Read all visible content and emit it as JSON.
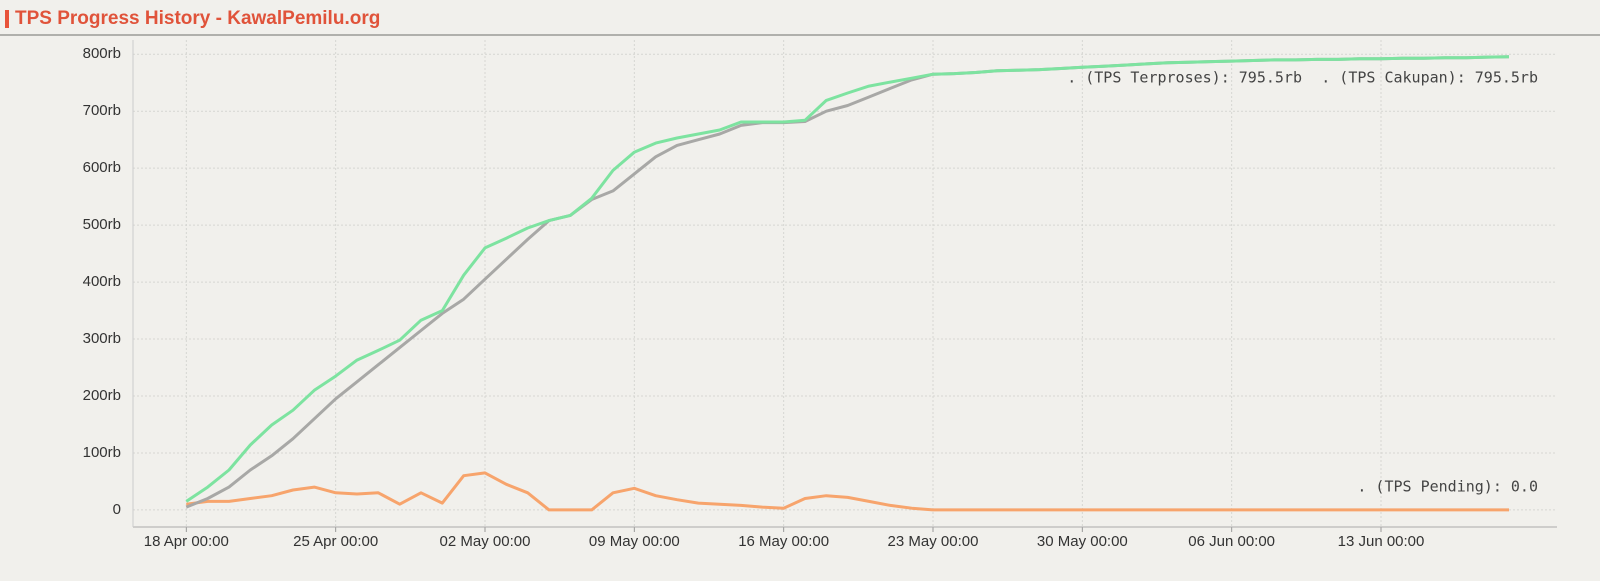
{
  "chart_data": {
    "type": "line",
    "title": "TPS Progress History - KawalPemilu.org",
    "x": [
      "18 Apr 00:00",
      "19 Apr 00:00",
      "20 Apr 00:00",
      "21 Apr 00:00",
      "22 Apr 00:00",
      "23 Apr 00:00",
      "24 Apr 00:00",
      "25 Apr 00:00",
      "26 Apr 00:00",
      "27 Apr 00:00",
      "28 Apr 00:00",
      "29 Apr 00:00",
      "30 Apr 00:00",
      "01 May 00:00",
      "02 May 00:00",
      "03 May 00:00",
      "04 May 00:00",
      "05 May 00:00",
      "06 May 00:00",
      "07 May 00:00",
      "08 May 00:00",
      "09 May 00:00",
      "10 May 00:00",
      "11 May 00:00",
      "12 May 00:00",
      "13 May 00:00",
      "14 May 00:00",
      "15 May 00:00",
      "16 May 00:00",
      "17 May 00:00",
      "18 May 00:00",
      "19 May 00:00",
      "20 May 00:00",
      "21 May 00:00",
      "22 May 00:00",
      "23 May 00:00",
      "24 May 00:00",
      "25 May 00:00",
      "26 May 00:00",
      "27 May 00:00",
      "28 May 00:00",
      "29 May 00:00",
      "30 May 00:00",
      "31 May 00:00",
      "01 Jun 00:00",
      "02 Jun 00:00",
      "03 Jun 00:00",
      "04 Jun 00:00",
      "05 Jun 00:00",
      "06 Jun 00:00",
      "07 Jun 00:00",
      "08 Jun 00:00",
      "09 Jun 00:00",
      "10 Jun 00:00",
      "11 Jun 00:00",
      "12 Jun 00:00",
      "13 Jun 00:00",
      "14 Jun 00:00",
      "15 Jun 00:00",
      "16 Jun 00:00",
      "17 Jun 00:00",
      "18 Jun 00:00",
      "19 Jun 00:00"
    ],
    "series": [
      {
        "name": ". (TPS Terproses): 795.5rb",
        "color": "#7de3a0",
        "values": [
          15,
          40,
          70,
          114,
          149,
          175,
          210,
          235,
          263,
          280,
          298,
          333,
          350,
          412,
          460,
          477,
          495,
          508,
          517,
          547,
          596,
          628,
          644,
          653,
          660,
          667,
          681,
          681,
          681,
          684,
          719,
          732,
          744,
          751,
          758,
          765,
          766,
          768,
          771,
          772,
          773,
          775,
          777,
          779,
          781,
          783,
          785,
          786,
          787,
          788,
          789,
          790,
          790,
          791,
          791,
          792,
          792,
          793,
          793,
          794,
          794,
          795,
          795.5
        ]
      },
      {
        "name": ". (TPS Cakupan): 795.5rb",
        "color": "#a8a8a6",
        "values": [
          5,
          20,
          40,
          70,
          95,
          125,
          160,
          195,
          225,
          255,
          285,
          315,
          345,
          370,
          405,
          440,
          475,
          508,
          517,
          545,
          560,
          590,
          620,
          640,
          650,
          660,
          675,
          680,
          680,
          682,
          700,
          710,
          725,
          740,
          755,
          765,
          766,
          768,
          771,
          772,
          773,
          775,
          777,
          779,
          781,
          783,
          785,
          786,
          787,
          788,
          789,
          790,
          790,
          791,
          791,
          792,
          792,
          793,
          793,
          794,
          794,
          795,
          795.5
        ]
      },
      {
        "name": ". (TPS Pending): 0.0",
        "color": "#f7a46c",
        "values": [
          10,
          15,
          15,
          20,
          25,
          35,
          40,
          30,
          28,
          30,
          10,
          30,
          12,
          60,
          65,
          45,
          30,
          0,
          0,
          0,
          30,
          38,
          25,
          18,
          12,
          10,
          8,
          5,
          3,
          20,
          25,
          22,
          15,
          8,
          3,
          0,
          0,
          0,
          0,
          0,
          0,
          0,
          0,
          0,
          0,
          0,
          0,
          0,
          0,
          0,
          0,
          0,
          0,
          0,
          0,
          0,
          0,
          0,
          0,
          0,
          0,
          0,
          0
        ]
      }
    ],
    "ylim": [
      -30,
      825
    ],
    "yticks": [
      0,
      {
        "value": 100,
        "label": "100rb"
      },
      {
        "value": 200,
        "label": "200rb"
      },
      {
        "value": 300,
        "label": "300rb"
      },
      {
        "value": 400,
        "label": "400rb"
      },
      {
        "value": 500,
        "label": "500rb"
      },
      {
        "value": 600,
        "label": "600rb"
      },
      {
        "value": 700,
        "label": "700rb"
      },
      {
        "value": 800,
        "label": "800rb"
      }
    ],
    "xlim": [
      "15 Apr 12:00",
      "21 Jun 06:00"
    ],
    "xticks": [
      "18 Apr 00:00",
      "25 Apr 00:00",
      "02 May 00:00",
      "09 May 00:00",
      "16 May 00:00",
      "23 May 00:00",
      "30 May 00:00",
      "06 Jun 00:00",
      "13 Jun 00:00"
    ],
    "grid": true
  }
}
